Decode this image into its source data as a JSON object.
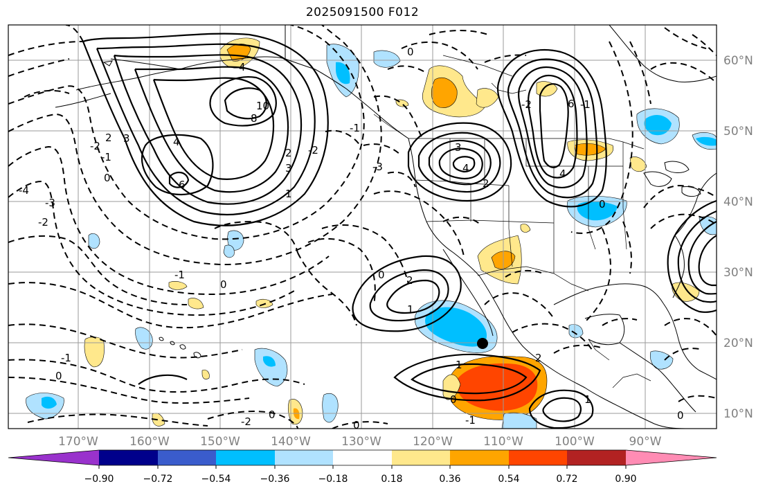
{
  "title": "2025091500 F012",
  "map": {
    "lon_range": [
      -180,
      -80
    ],
    "lat_range": [
      8,
      65
    ],
    "lon_labels": [
      "170°W",
      "160°W",
      "150°W",
      "140°W",
      "130°W",
      "120°W",
      "110°W",
      "100°W",
      "90°W"
    ],
    "lat_labels": [
      "60°N",
      "50°N",
      "40°N",
      "30°N",
      "20°N",
      "10°N"
    ],
    "contour_labels": [
      "-4",
      "-3",
      "-2",
      "-1",
      "0",
      "2",
      "3",
      "4",
      "6",
      "8",
      "10",
      "-2",
      "-1",
      "0",
      "1",
      "2",
      "3",
      "4",
      "0",
      "1",
      "2",
      "-1",
      "0",
      "1",
      "2",
      "-1",
      "0",
      "0",
      "-2",
      "-3",
      "1",
      "-2",
      "-1",
      "0",
      "0",
      "4",
      "3",
      "4",
      "2",
      "6",
      "-2",
      "-1",
      "0",
      "0"
    ],
    "marker": "black-dot"
  },
  "colorbar": {
    "colors": [
      "#9932cc",
      "#00008b",
      "#3a5ccc",
      "#00bfff",
      "#b0e2ff",
      "#ffffff",
      "#ffe88c",
      "#ffa500",
      "#ff4500",
      "#b22222",
      "#ff8cb4"
    ],
    "tick_labels": [
      "−0.90",
      "−0.72",
      "−0.54",
      "−0.36",
      "−0.18",
      "0.18",
      "0.36",
      "0.54",
      "0.72",
      "0.90"
    ]
  }
}
